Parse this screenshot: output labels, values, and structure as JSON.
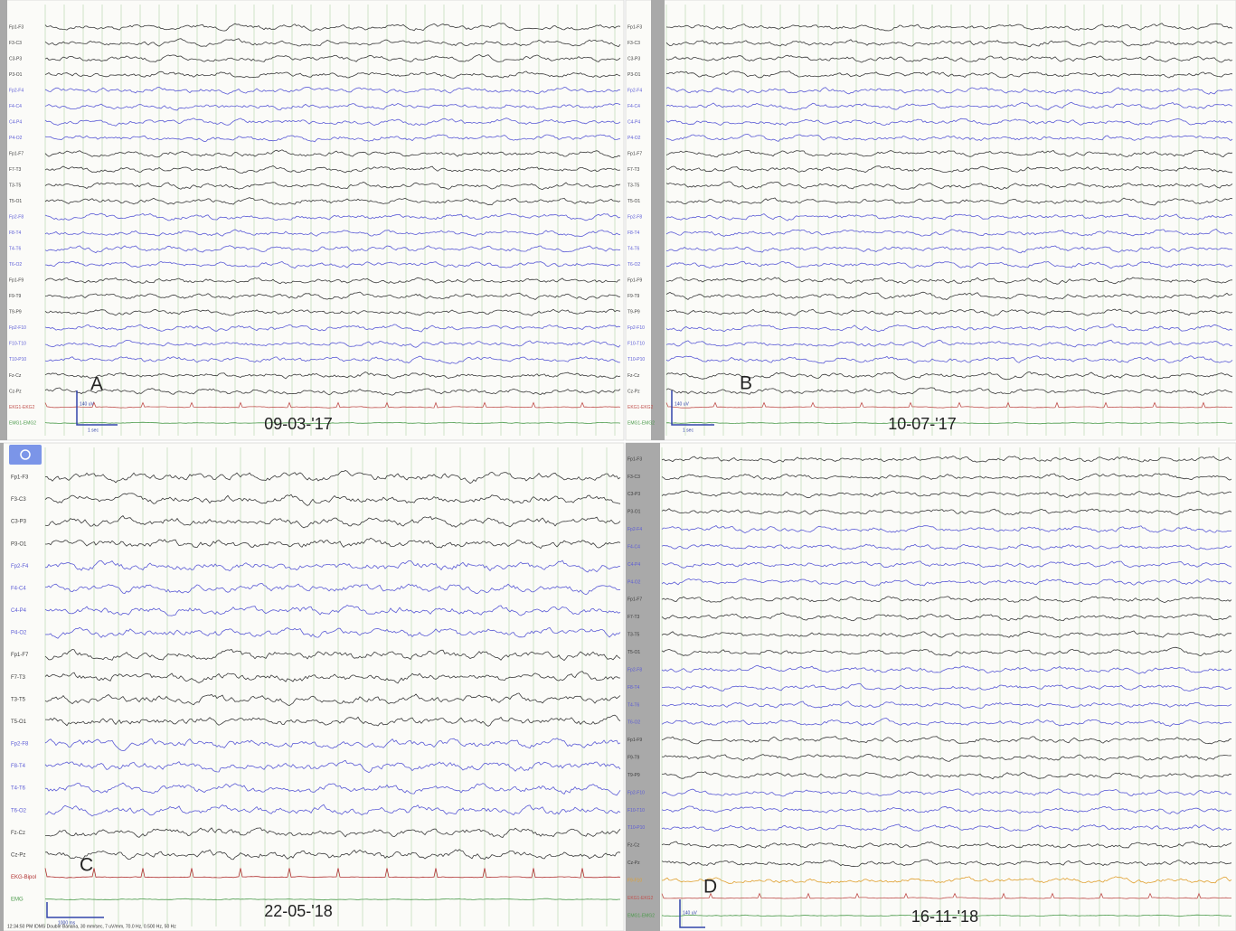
{
  "panels": [
    {
      "label": "A",
      "date": "09-03-'17",
      "scale": {
        "amplitude": "140 uV",
        "time": "1 sec"
      },
      "channels": [
        {
          "label": "Fp1-F3",
          "color": "#3a3a3a"
        },
        {
          "label": "F3-C3",
          "color": "#3a3a3a"
        },
        {
          "label": "C3-P3",
          "color": "#3a3a3a"
        },
        {
          "label": "P3-O1",
          "color": "#3a3a3a"
        },
        {
          "label": "Fp2-F4",
          "color": "#5b5bd6"
        },
        {
          "label": "F4-C4",
          "color": "#5b5bd6"
        },
        {
          "label": "C4-P4",
          "color": "#5b5bd6"
        },
        {
          "label": "P4-O2",
          "color": "#5b5bd6"
        },
        {
          "label": "Fp1-F7",
          "color": "#3a3a3a"
        },
        {
          "label": "F7-T3",
          "color": "#3a3a3a"
        },
        {
          "label": "T3-T5",
          "color": "#3a3a3a"
        },
        {
          "label": "T5-O1",
          "color": "#3a3a3a"
        },
        {
          "label": "Fp2-F8",
          "color": "#5b5bd6"
        },
        {
          "label": "F8-T4",
          "color": "#5b5bd6"
        },
        {
          "label": "T4-T6",
          "color": "#5b5bd6"
        },
        {
          "label": "T6-O2",
          "color": "#5b5bd6"
        },
        {
          "label": "Fp1-F9",
          "color": "#3a3a3a"
        },
        {
          "label": "F9-T9",
          "color": "#3a3a3a"
        },
        {
          "label": "T9-P9",
          "color": "#3a3a3a"
        },
        {
          "label": "Fp2-F10",
          "color": "#5b5bd6"
        },
        {
          "label": "F10-T10",
          "color": "#5b5bd6"
        },
        {
          "label": "T10-P10",
          "color": "#5b5bd6"
        },
        {
          "label": "Fz-Cz",
          "color": "#3a3a3a"
        },
        {
          "label": "Cz-Pz",
          "color": "#3a3a3a"
        },
        {
          "label": "EKG1-EKG2",
          "color": "#c0504d"
        },
        {
          "label": "EMG1-EMG2",
          "color": "#4a9a4a"
        }
      ]
    },
    {
      "label": "B",
      "date": "10-07-'17",
      "scale": {
        "amplitude": "140 uV",
        "time": "1 sec"
      },
      "channels": [
        {
          "label": "Fp1-F3",
          "color": "#3a3a3a"
        },
        {
          "label": "F3-C3",
          "color": "#3a3a3a"
        },
        {
          "label": "C3-P3",
          "color": "#3a3a3a"
        },
        {
          "label": "P3-O1",
          "color": "#3a3a3a"
        },
        {
          "label": "Fp2-F4",
          "color": "#5b5bd6"
        },
        {
          "label": "F4-C4",
          "color": "#5b5bd6"
        },
        {
          "label": "C4-P4",
          "color": "#5b5bd6"
        },
        {
          "label": "P4-O2",
          "color": "#5b5bd6"
        },
        {
          "label": "Fp1-F7",
          "color": "#3a3a3a"
        },
        {
          "label": "F7-T3",
          "color": "#3a3a3a"
        },
        {
          "label": "T3-T5",
          "color": "#3a3a3a"
        },
        {
          "label": "T5-O1",
          "color": "#3a3a3a"
        },
        {
          "label": "Fp2-F8",
          "color": "#5b5bd6"
        },
        {
          "label": "F8-T4",
          "color": "#5b5bd6"
        },
        {
          "label": "T4-T6",
          "color": "#5b5bd6"
        },
        {
          "label": "T6-O2",
          "color": "#5b5bd6"
        },
        {
          "label": "Fp1-F9",
          "color": "#3a3a3a"
        },
        {
          "label": "F9-T9",
          "color": "#3a3a3a"
        },
        {
          "label": "T9-P9",
          "color": "#3a3a3a"
        },
        {
          "label": "Fp2-F10",
          "color": "#5b5bd6"
        },
        {
          "label": "F10-T10",
          "color": "#5b5bd6"
        },
        {
          "label": "T10-P10",
          "color": "#5b5bd6"
        },
        {
          "label": "Fz-Cz",
          "color": "#3a3a3a"
        },
        {
          "label": "Cz-Pz",
          "color": "#3a3a3a"
        },
        {
          "label": "EKG1-EKG2",
          "color": "#c0504d"
        },
        {
          "label": "EMG1-EMG2",
          "color": "#4a9a4a"
        }
      ]
    },
    {
      "label": "C",
      "date": "22-05-'18",
      "scale": {
        "time": "1000 ms"
      },
      "footer": "12:34:50 PM IDMS Double Banana, 30 mm/sec, 7 uV/mm, 70.0 Hz, 0.500 Hz, 50 Hz",
      "channels": [
        {
          "label": "Fp1-F3",
          "color": "#3a3a3a"
        },
        {
          "label": "F3-C3",
          "color": "#3a3a3a"
        },
        {
          "label": "C3-P3",
          "color": "#3a3a3a"
        },
        {
          "label": "P3-O1",
          "color": "#3a3a3a"
        },
        {
          "label": "Fp2-F4",
          "color": "#5b5bd6"
        },
        {
          "label": "F4-C4",
          "color": "#5b5bd6"
        },
        {
          "label": "C4-P4",
          "color": "#5b5bd6"
        },
        {
          "label": "P4-O2",
          "color": "#5b5bd6"
        },
        {
          "label": "Fp1-F7",
          "color": "#3a3a3a"
        },
        {
          "label": "F7-T3",
          "color": "#3a3a3a"
        },
        {
          "label": "T3-T5",
          "color": "#3a3a3a"
        },
        {
          "label": "T5-O1",
          "color": "#3a3a3a"
        },
        {
          "label": "Fp2-F8",
          "color": "#5b5bd6"
        },
        {
          "label": "F8-T4",
          "color": "#5b5bd6"
        },
        {
          "label": "T4-T6",
          "color": "#5b5bd6"
        },
        {
          "label": "T6-O2",
          "color": "#5b5bd6"
        },
        {
          "label": "Fz-Cz",
          "color": "#3a3a3a"
        },
        {
          "label": "Cz-Pz",
          "color": "#3a3a3a"
        },
        {
          "label": "EKG-Bipol",
          "color": "#b03030"
        },
        {
          "label": "EMG",
          "color": "#4a9a4a"
        }
      ]
    },
    {
      "label": "D",
      "date": "16-11-'18",
      "scale": {
        "amplitude": "140 uV"
      },
      "channels": [
        {
          "label": "Fp1-F3",
          "color": "#3a3a3a"
        },
        {
          "label": "F3-C3",
          "color": "#3a3a3a"
        },
        {
          "label": "C3-P3",
          "color": "#3a3a3a"
        },
        {
          "label": "P3-O1",
          "color": "#3a3a3a"
        },
        {
          "label": "Fp2-F4",
          "color": "#5b5bd6"
        },
        {
          "label": "F4-C4",
          "color": "#5b5bd6"
        },
        {
          "label": "C4-P4",
          "color": "#5b5bd6"
        },
        {
          "label": "P4-O2",
          "color": "#5b5bd6"
        },
        {
          "label": "Fp1-F7",
          "color": "#3a3a3a"
        },
        {
          "label": "F7-T3",
          "color": "#3a3a3a"
        },
        {
          "label": "T3-T5",
          "color": "#3a3a3a"
        },
        {
          "label": "T5-O1",
          "color": "#3a3a3a"
        },
        {
          "label": "Fp2-F8",
          "color": "#5b5bd6"
        },
        {
          "label": "F8-T4",
          "color": "#5b5bd6"
        },
        {
          "label": "T4-T6",
          "color": "#5b5bd6"
        },
        {
          "label": "T6-O2",
          "color": "#5b5bd6"
        },
        {
          "label": "Fp1-F9",
          "color": "#3a3a3a"
        },
        {
          "label": "F9-T9",
          "color": "#3a3a3a"
        },
        {
          "label": "T9-P9",
          "color": "#3a3a3a"
        },
        {
          "label": "Fp2-F10",
          "color": "#5b5bd6"
        },
        {
          "label": "F10-T10",
          "color": "#5b5bd6"
        },
        {
          "label": "T10-P10",
          "color": "#5b5bd6"
        },
        {
          "label": "Fz-Cz",
          "color": "#3a3a3a"
        },
        {
          "label": "Cz-Pz",
          "color": "#3a3a3a"
        },
        {
          "label": "F9-F10",
          "color": "#e0a030"
        },
        {
          "label": "EKG1-EKG2",
          "color": "#c0504d"
        },
        {
          "label": "EMG1-EMG2",
          "color": "#4a9a4a"
        }
      ]
    }
  ]
}
